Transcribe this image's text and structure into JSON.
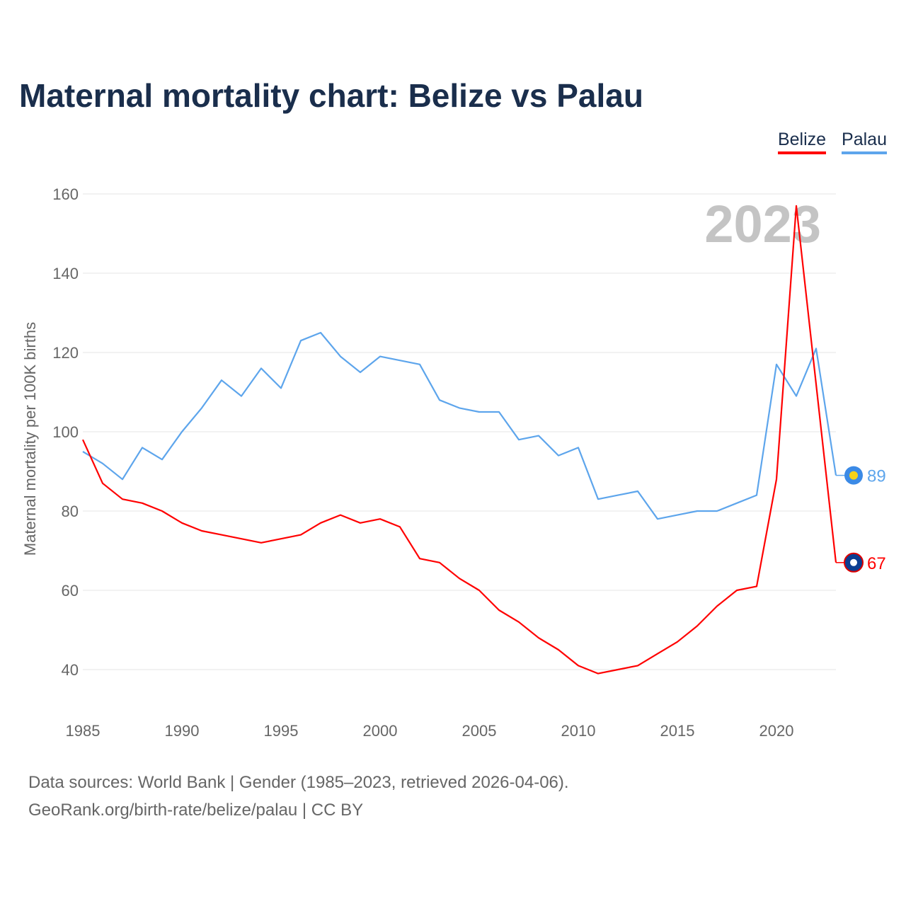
{
  "title": "Maternal mortality chart: Belize vs Palau",
  "footer": {
    "line1": "Data sources: World Bank | Gender (1985–2023, retrieved 2026-04-06).",
    "line2": "GeoRank.org/birth-rate/belize/palau | CC BY"
  },
  "chart_data": {
    "type": "line",
    "title": "Maternal mortality chart: Belize vs Palau",
    "ylabel": "Maternal mortality per 100K births",
    "xlabel": "",
    "year_watermark": "2023",
    "xlim": [
      1985,
      2023
    ],
    "ylim": [
      40,
      160
    ],
    "x_ticks": [
      "1985",
      "1990",
      "1995",
      "2000",
      "2005",
      "2010",
      "2015",
      "2020"
    ],
    "y_ticks": [
      "40",
      "60",
      "80",
      "100",
      "120",
      "140",
      "160"
    ],
    "grid": true,
    "legend_position": "top-right",
    "x": [
      1985,
      1986,
      1987,
      1988,
      1989,
      1990,
      1991,
      1992,
      1993,
      1994,
      1995,
      1996,
      1997,
      1998,
      1999,
      2000,
      2001,
      2002,
      2003,
      2004,
      2005,
      2006,
      2007,
      2008,
      2009,
      2010,
      2011,
      2012,
      2013,
      2014,
      2015,
      2016,
      2017,
      2018,
      2019,
      2020,
      2021,
      2022,
      2023
    ],
    "series": [
      {
        "name": "Belize",
        "color": "#ff0000",
        "end_label": "67",
        "values": [
          98,
          87,
          83,
          82,
          80,
          77,
          75,
          74,
          73,
          72,
          73,
          74,
          77,
          79,
          77,
          78,
          76,
          68,
          67,
          63,
          60,
          55,
          52,
          48,
          45,
          41,
          39,
          40,
          41,
          44,
          47,
          51,
          56,
          60,
          61,
          88,
          157,
          112,
          67
        ]
      },
      {
        "name": "Palau",
        "color": "#5da5ec",
        "end_label": "89",
        "values": [
          95,
          92,
          88,
          96,
          93,
          100,
          106,
          113,
          109,
          116,
          111,
          123,
          125,
          119,
          115,
          119,
          118,
          117,
          108,
          106,
          105,
          105,
          98,
          99,
          94,
          96,
          83,
          84,
          85,
          78,
          79,
          80,
          80,
          82,
          84,
          117,
          109,
          121,
          89
        ]
      }
    ]
  }
}
